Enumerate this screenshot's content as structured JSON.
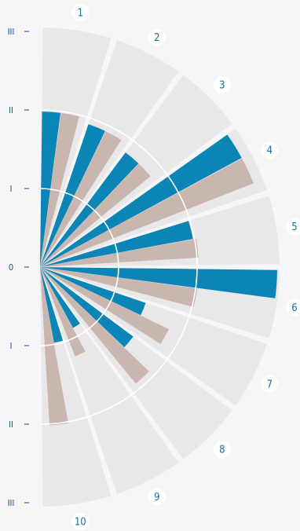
{
  "chart_data": {
    "type": "radial-bar",
    "radial_scale_labels": [
      "III",
      "II",
      "I",
      "0",
      "I",
      "II",
      "III"
    ],
    "radial_max": 3,
    "categories": [
      "1",
      "2",
      "3",
      "4",
      "5",
      "6",
      "7",
      "8",
      "9",
      "10"
    ],
    "series": [
      {
        "color": "#0b84b6",
        "values": [
          1.98,
          1.92,
          1.82,
          2.92,
          1.98,
          3.02,
          1.42,
          1.48,
          0.88,
          0.98
        ]
      },
      {
        "color": "#c9b6af",
        "values": [
          1.98,
          1.92,
          1.82,
          2.92,
          2.02,
          2.02,
          1.82,
          1.92,
          1.22,
          2.02
        ]
      }
    ],
    "background": {
      "color": "#e8e8ea",
      "value": 3.05
    },
    "grid_rings": [
      1,
      2
    ],
    "colors": {
      "blue": "#0b84b6",
      "tan": "#c9b6af",
      "ticks": "#1f4e8c",
      "labels": "#1a6f9a"
    }
  }
}
